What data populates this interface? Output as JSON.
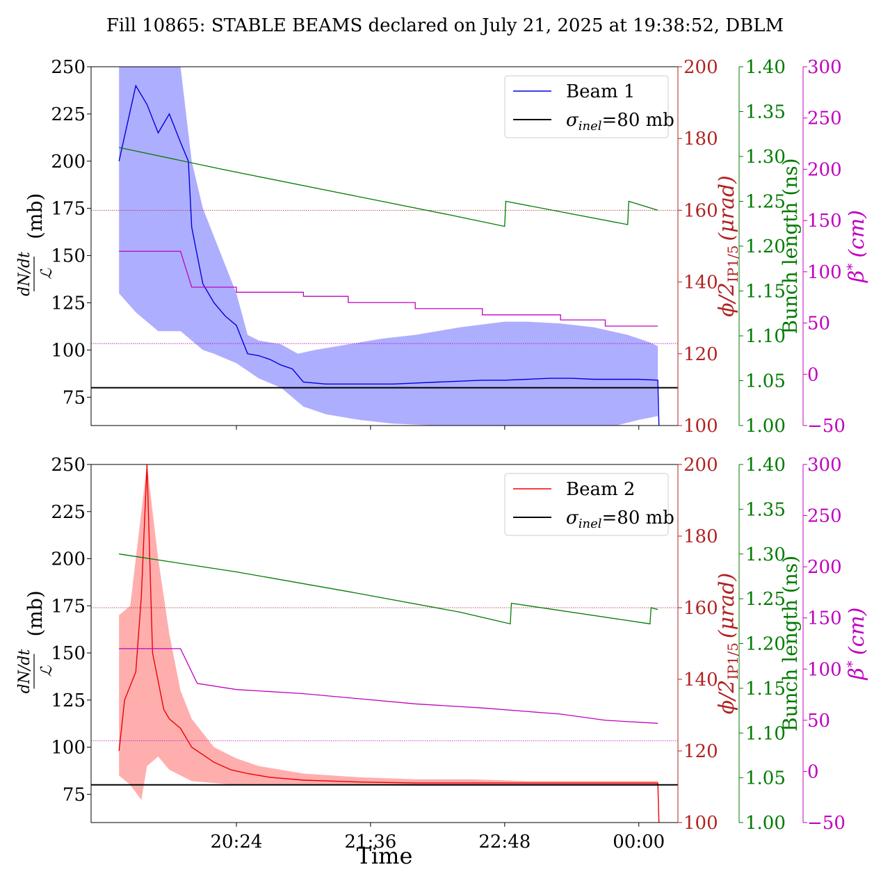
{
  "figure": {
    "title": "Fill 10865: STABLE BEAMS declared on July 21, 2025 at 19:38:52, DBLM",
    "xlabel": "Time",
    "time_ticks": [
      "20:24",
      "21:36",
      "22:48",
      "00:00"
    ]
  },
  "axes": {
    "left": {
      "label_frac_num": "dN/dt",
      "label_frac_den": "ℒ",
      "label_unit": "(mb)",
      "ylim": [
        60,
        250
      ],
      "ticks": [
        75,
        100,
        125,
        150,
        175,
        200,
        225,
        250
      ],
      "color": "#000000"
    },
    "crossing": {
      "label_phi": "ϕ/2",
      "label_sub": "IP1/5",
      "label_unit": "(μrad)",
      "ylim": [
        100,
        200
      ],
      "ticks": [
        100,
        120,
        140,
        160,
        180,
        200
      ],
      "color": "#b22222"
    },
    "bunch": {
      "label": "Bunch length (ns)",
      "ylim": [
        1.0,
        1.4
      ],
      "ticks": [
        "1.00",
        "1.05",
        "1.10",
        "1.15",
        "1.20",
        "1.25",
        "1.30",
        "1.35",
        "1.40"
      ],
      "color": "#007a00"
    },
    "beta": {
      "label_beta": "β",
      "label_star": "*",
      "label_unit": "(cm)",
      "ylim": [
        -50,
        300
      ],
      "ticks": [
        "−50",
        "0",
        "50",
        "100",
        "150",
        "200",
        "250",
        "300"
      ],
      "color": "#c000c0"
    }
  },
  "chart_data": [
    {
      "type": "line",
      "panel": "top",
      "x_unit": "hours after 19:00",
      "xlim": [
        19.1,
        24.35
      ],
      "legend": {
        "beam_label": "Beam 1",
        "sigma_label_pre": "σ",
        "sigma_sub": "inel",
        "sigma_label_post": "=80 mb",
        "position": "top-right"
      },
      "beam_color": "#0000dd",
      "band_color": "#aaaaff",
      "series": {
        "dNdt_mean": {
          "x": [
            19.35,
            19.5,
            19.6,
            19.7,
            19.8,
            19.9,
            19.97,
            20.0,
            20.05,
            20.1,
            20.15,
            20.2,
            20.3,
            20.4,
            20.5,
            20.6,
            20.7,
            20.8,
            20.9,
            21.0,
            21.2,
            21.4,
            21.6,
            21.8,
            22.0,
            22.2,
            22.4,
            22.6,
            22.8,
            23.0,
            23.2,
            23.4,
            23.6,
            23.8,
            24.0,
            24.17,
            24.18
          ],
          "y": [
            200,
            240,
            230,
            215,
            225,
            210,
            200,
            165,
            150,
            135,
            130,
            125,
            118,
            113,
            98,
            97,
            95,
            92,
            90,
            83,
            82,
            82,
            82,
            82,
            82.5,
            83,
            83.5,
            84,
            84,
            84.5,
            85,
            85,
            84.5,
            84.5,
            84.5,
            84,
            60
          ]
        },
        "dNdt_upper": {
          "x": [
            19.35,
            19.5,
            19.7,
            19.9,
            20.0,
            20.1,
            20.2,
            20.4,
            20.5,
            20.6,
            20.8,
            20.95,
            21.1,
            21.4,
            21.7,
            22.0,
            22.4,
            22.8,
            23.0,
            23.3,
            23.6,
            23.9,
            24.1,
            24.17
          ],
          "y": [
            250,
            250,
            250,
            250,
            200,
            175,
            160,
            130,
            108,
            105,
            103,
            98,
            100,
            103,
            106,
            108,
            112,
            115,
            115,
            114,
            112,
            108,
            104,
            102
          ]
        },
        "dNdt_lower": {
          "x": [
            19.35,
            19.5,
            19.7,
            19.9,
            20.0,
            20.1,
            20.2,
            20.4,
            20.6,
            20.8,
            20.9,
            21.0,
            21.2,
            21.5,
            21.8,
            22.2,
            22.6,
            23.0,
            23.4,
            23.8,
            24.0,
            24.17
          ],
          "y": [
            130,
            120,
            110,
            110,
            105,
            100,
            98,
            93,
            85,
            80,
            75,
            70,
            66,
            63,
            61,
            60,
            60,
            60,
            60,
            60,
            63,
            65
          ]
        },
        "sigma_inel": {
          "y": 80
        },
        "bunch_length": {
          "x": [
            19.35,
            20.3,
            21.3,
            22.3,
            22.8,
            22.81,
            23.9,
            23.91,
            24.17
          ],
          "y": [
            1.31,
            1.285,
            1.26,
            1.235,
            1.222,
            1.25,
            1.224,
            1.25,
            1.24
          ]
        },
        "crossing_angle": {
          "y": 160
        },
        "beta_star": {
          "x": [
            19.35,
            19.9,
            20.0,
            20.0,
            20.4,
            20.4,
            21.0,
            21.0,
            21.4,
            21.4,
            22.0,
            22.0,
            22.6,
            22.6,
            23.3,
            23.3,
            23.7,
            23.7,
            24.17
          ],
          "y": [
            120,
            120,
            85,
            85,
            85,
            80,
            80,
            76,
            76,
            70,
            70,
            64,
            64,
            58,
            58,
            53,
            53,
            47,
            47
          ]
        },
        "beta_ref": {
          "y": 30
        }
      }
    },
    {
      "type": "line",
      "panel": "bottom",
      "x_unit": "hours after 19:00",
      "xlim": [
        19.1,
        24.35
      ],
      "legend": {
        "beam_label": "Beam 2",
        "sigma_label_pre": "σ",
        "sigma_sub": "inel",
        "sigma_label_post": "=80 mb",
        "position": "top-right"
      },
      "beam_color": "#ee0000",
      "band_color": "#ffaaaa",
      "series": {
        "dNdt_mean": {
          "x": [
            19.35,
            19.4,
            19.5,
            19.55,
            19.6,
            19.65,
            19.7,
            19.75,
            19.8,
            19.9,
            20.0,
            20.1,
            20.2,
            20.35,
            20.5,
            20.7,
            21.0,
            21.5,
            22.0,
            22.5,
            23.0,
            23.5,
            24.0,
            24.17,
            24.18
          ],
          "y": [
            98,
            125,
            140,
            180,
            250,
            150,
            135,
            120,
            115,
            110,
            100,
            96,
            92,
            88,
            86,
            84,
            82.5,
            81.5,
            81,
            81,
            81,
            81,
            81,
            81,
            60
          ]
        },
        "dNdt_upper": {
          "x": [
            19.35,
            19.45,
            19.55,
            19.6,
            19.7,
            19.8,
            19.9,
            20.0,
            20.2,
            20.4,
            20.6,
            21.0,
            21.5,
            22.0,
            22.5,
            23.0,
            23.5,
            24.17
          ],
          "y": [
            170,
            175,
            225,
            250,
            200,
            160,
            130,
            115,
            100,
            94,
            90,
            86,
            84,
            83,
            83,
            82,
            82,
            82
          ]
        },
        "dNdt_lower": {
          "x": [
            19.35,
            19.45,
            19.55,
            19.6,
            19.7,
            19.8,
            19.9,
            20.0,
            20.2,
            20.4,
            20.6,
            21.0,
            21.5,
            22.0,
            23.0,
            24.17
          ],
          "y": [
            85,
            80,
            72,
            90,
            95,
            88,
            85,
            82,
            81,
            80,
            80,
            80,
            80,
            79.5,
            79.5,
            79.5
          ]
        },
        "sigma_inel": {
          "y": 80
        },
        "bunch_length": {
          "x": [
            19.35,
            20.4,
            21.4,
            22.4,
            22.85,
            22.86,
            24.1,
            24.11,
            24.17
          ],
          "y": [
            1.3,
            1.28,
            1.258,
            1.235,
            1.222,
            1.245,
            1.222,
            1.24,
            1.238
          ]
        },
        "crossing_angle": {
          "y": 160
        },
        "beta_star": {
          "x": [
            19.35,
            19.9,
            20.05,
            20.05,
            20.4,
            20.4,
            21.0,
            21.0,
            21.4,
            21.4,
            22.0,
            22.0,
            22.6,
            22.6,
            23.3,
            23.3,
            23.7,
            23.7,
            24.17
          ],
          "y": [
            120,
            120,
            86,
            86,
            80,
            80,
            76,
            76,
            72,
            72,
            66,
            66,
            62,
            62,
            56,
            56,
            50,
            50,
            47
          ]
        },
        "beta_ref": {
          "y": 30
        }
      }
    }
  ]
}
